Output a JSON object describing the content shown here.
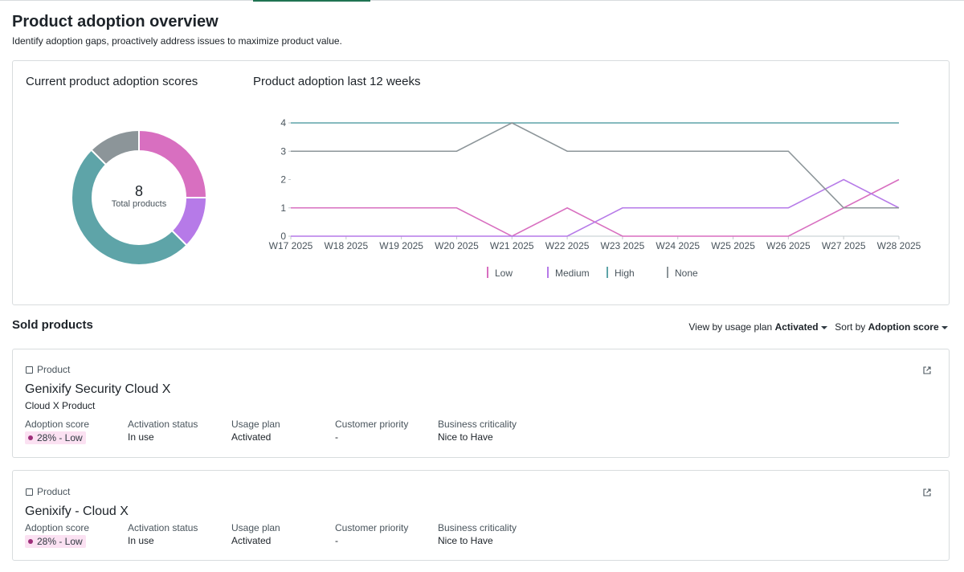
{
  "header": {
    "title": "Product adoption overview",
    "subtitle": "Identify adoption gaps, proactively address issues to maximize product value."
  },
  "chart_data": [
    {
      "type": "donut",
      "title": "Current product adoption scores",
      "values": [
        2,
        1,
        4,
        1
      ],
      "colors": [
        "#d86fc0",
        "#b67ae8",
        "#5ea4a8",
        "#8c9599"
      ],
      "center_value": 8,
      "center_label": "Total products"
    },
    {
      "type": "line",
      "title": "Product adoption last 12 weeks",
      "categories": [
        "W17 2025",
        "W18 2025",
        "W19 2025",
        "W20 2025",
        "W21 2025",
        "W22 2025",
        "W23 2025",
        "W24 2025",
        "W25 2025",
        "W26 2025",
        "W27 2025",
        "W28 2025"
      ],
      "series": [
        {
          "name": "Low",
          "color": "#d86fc0",
          "values": [
            1,
            1,
            1,
            1,
            0,
            1,
            0,
            0,
            0,
            0,
            1,
            2
          ]
        },
        {
          "name": "Medium",
          "color": "#b67ae8",
          "values": [
            0,
            0,
            0,
            0,
            0,
            0,
            1,
            1,
            1,
            1,
            2,
            1
          ]
        },
        {
          "name": "High",
          "color": "#5ea4a8",
          "values": [
            4,
            4,
            4,
            4,
            4,
            4,
            4,
            4,
            4,
            4,
            4,
            4
          ]
        },
        {
          "name": "None",
          "color": "#8c9599",
          "values": [
            3,
            3,
            3,
            3,
            4,
            3,
            3,
            3,
            3,
            3,
            1,
            1
          ]
        }
      ],
      "ylim": [
        0,
        4
      ],
      "yticks": [
        0,
        1,
        2,
        3,
        4
      ],
      "grid": false,
      "legend": "bottom"
    }
  ],
  "sold_products": {
    "title": "Sold products",
    "view_by_label": "View by usage plan",
    "view_by_value": "Activated",
    "sort_label": "Sort by",
    "sort_value": "Adoption score",
    "products": [
      {
        "label": "Product",
        "name": "Genixify Security Cloud X",
        "subtitle": "Cloud X Product",
        "fields": [
          {
            "label": "Adoption score",
            "value": "28% - Low"
          },
          {
            "label": "Activation status",
            "value": "In use"
          },
          {
            "label": "Usage plan",
            "value": "Activated"
          },
          {
            "label": "Customer priority",
            "value": "-"
          },
          {
            "label": "Business criticality",
            "value": "Nice to Have"
          }
        ]
      },
      {
        "label": "Product",
        "name": "Genixify - Cloud X",
        "fields": [
          {
            "label": "Adoption score",
            "value": "28% - Low"
          },
          {
            "label": "Activation status",
            "value": "In use"
          },
          {
            "label": "Usage plan",
            "value": "Activated"
          },
          {
            "label": "Customer priority",
            "value": "-"
          },
          {
            "label": "Business criticality",
            "value": "Nice to Have"
          }
        ]
      }
    ]
  }
}
